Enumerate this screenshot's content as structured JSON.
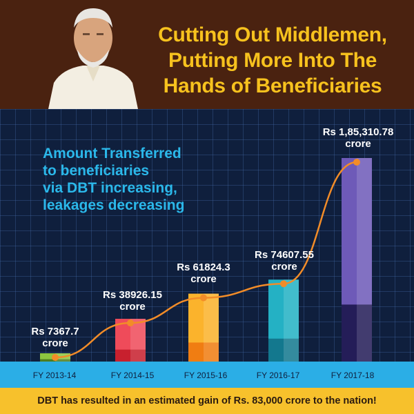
{
  "header": {
    "title_lines": [
      "Cutting Out Middlemen,",
      "Putting More Into The",
      "Hands of Beneficiaries"
    ]
  },
  "chart_title_lines": [
    "Amount Transferred",
    "to beneficiaries",
    "via DBT increasing,",
    "leakages decreasing"
  ],
  "footer": {
    "text": "DBT has resulted in an estimated gain of Rs. 83,000 crore to the nation!"
  },
  "colors": {
    "header_bg": "#4a2210",
    "headline": "#f7c21e",
    "chart_bg": "#0f1f3d",
    "trend_line": "#f28c28",
    "axis_band": "#2baee6",
    "footer_bg": "#f7c12c"
  },
  "chart_data": {
    "type": "bar",
    "categories": [
      "FY 2013-14",
      "FY 2014-15",
      "FY 2015-16",
      "FY 2016-17",
      "FY 2017-18"
    ],
    "values": [
      7367.7,
      38926.15,
      61824.3,
      74607.55,
      185310.78
    ],
    "value_labels": [
      "Rs 7367.7",
      "Rs 38926.15",
      "Rs 61824.3",
      "Rs 74607.55",
      "Rs 1,85,310.78"
    ],
    "unit_label": "crore",
    "bar_colors": [
      {
        "top": "#8dc640",
        "bottom": "#4e7d1e"
      },
      {
        "top": "#ef4b5a",
        "bottom": "#c8202e"
      },
      {
        "top": "#fbb32c",
        "bottom": "#f07d12"
      },
      {
        "top": "#24b1c4",
        "bottom": "#13788e"
      },
      {
        "top": "#6e5ab8",
        "bottom": "#241d58"
      }
    ],
    "trend_line": true,
    "grid": true
  }
}
